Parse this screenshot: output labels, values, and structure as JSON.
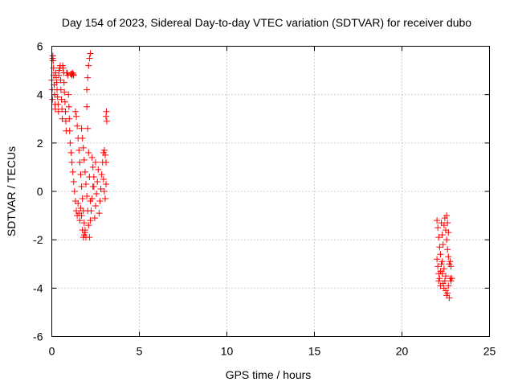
{
  "chart_data": {
    "type": "scatter",
    "title": "Day 154 of 2023, Sidereal Day-to-day VTEC variation (SDTVAR) for receiver dubo",
    "xlabel": "GPS time / hours",
    "ylabel": "SDTVAR / TECUs",
    "xlim": [
      0,
      25
    ],
    "ylim": [
      -6,
      6
    ],
    "xticks": [
      "0",
      "5",
      "10",
      "15",
      "20",
      "25"
    ],
    "xtick_values": [
      0,
      5,
      10,
      15,
      20,
      25
    ],
    "yticks": [
      "-6",
      "-4",
      "-2",
      "0",
      "2",
      "4",
      "6"
    ],
    "ytick_values": [
      -6,
      -4,
      -2,
      0,
      2,
      4,
      6
    ],
    "grid": true,
    "legend": "none",
    "marker": "+",
    "color": "#ff0000",
    "series": [
      {
        "name": "SDTVAR",
        "points": [
          [
            0.0,
            4.6
          ],
          [
            0.02,
            4.2
          ],
          [
            0.04,
            3.8
          ],
          [
            0.05,
            5.5
          ],
          [
            0.06,
            5.6
          ],
          [
            0.08,
            5.4
          ],
          [
            0.1,
            5.1
          ],
          [
            0.12,
            4.8
          ],
          [
            0.14,
            4.4
          ],
          [
            0.16,
            4.0
          ],
          [
            0.18,
            3.6
          ],
          [
            0.2,
            3.4
          ],
          [
            0.22,
            4.9
          ],
          [
            0.25,
            4.7
          ],
          [
            0.28,
            4.5
          ],
          [
            0.3,
            4.2
          ],
          [
            0.33,
            3.9
          ],
          [
            0.36,
            3.6
          ],
          [
            0.38,
            3.3
          ],
          [
            0.4,
            4.8
          ],
          [
            0.42,
            5.0
          ],
          [
            0.45,
            5.1
          ],
          [
            0.48,
            5.2
          ],
          [
            0.5,
            4.6
          ],
          [
            0.52,
            4.2
          ],
          [
            0.55,
            3.8
          ],
          [
            0.58,
            3.4
          ],
          [
            0.6,
            3.0
          ],
          [
            0.62,
            5.2
          ],
          [
            0.65,
            5.1
          ],
          [
            0.68,
            4.9
          ],
          [
            0.7,
            4.5
          ],
          [
            0.72,
            4.1
          ],
          [
            0.75,
            3.7
          ],
          [
            0.78,
            3.3
          ],
          [
            0.8,
            2.9
          ],
          [
            0.82,
            2.5
          ],
          [
            0.85,
            4.9
          ],
          [
            0.88,
            4.9
          ],
          [
            0.92,
            4.8
          ],
          [
            0.95,
            4.0
          ],
          [
            0.98,
            3.5
          ],
          [
            1.0,
            3.0
          ],
          [
            1.02,
            2.5
          ],
          [
            1.05,
            2.0
          ],
          [
            1.08,
            4.85
          ],
          [
            1.12,
            4.85
          ],
          [
            1.15,
            4.8
          ],
          [
            1.18,
            4.9
          ],
          [
            1.22,
            4.85
          ],
          [
            1.25,
            4.8
          ],
          [
            1.1,
            1.6
          ],
          [
            1.15,
            1.2
          ],
          [
            1.2,
            0.8
          ],
          [
            1.25,
            0.4
          ],
          [
            1.3,
            0.0
          ],
          [
            1.35,
            -0.4
          ],
          [
            1.4,
            -0.8
          ],
          [
            1.35,
            3.3
          ],
          [
            1.4,
            3.1
          ],
          [
            1.45,
            2.7
          ],
          [
            1.5,
            2.2
          ],
          [
            1.55,
            1.7
          ],
          [
            1.6,
            1.2
          ],
          [
            1.65,
            0.7
          ],
          [
            1.7,
            0.2
          ],
          [
            1.75,
            -0.3
          ],
          [
            1.8,
            -0.8
          ],
          [
            1.85,
            -1.3
          ],
          [
            1.9,
            -1.7
          ],
          [
            1.95,
            -1.9
          ],
          [
            1.45,
            -1.0
          ],
          [
            1.5,
            -0.5
          ],
          [
            1.55,
            -0.9
          ],
          [
            1.6,
            -1.2
          ],
          [
            1.65,
            -0.7
          ],
          [
            1.7,
            -1.0
          ],
          [
            1.75,
            -1.6
          ],
          [
            1.8,
            -1.9
          ],
          [
            1.85,
            -1.8
          ],
          [
            1.9,
            -1.6
          ],
          [
            1.7,
            2.6
          ],
          [
            1.75,
            2.2
          ],
          [
            1.8,
            1.8
          ],
          [
            1.85,
            1.3
          ],
          [
            1.9,
            0.8
          ],
          [
            1.95,
            0.3
          ],
          [
            2.0,
            -0.2
          ],
          [
            2.05,
            -0.8
          ],
          [
            2.1,
            -1.4
          ],
          [
            2.15,
            -1.9
          ],
          [
            2.0,
            4.2
          ],
          [
            2.05,
            4.7
          ],
          [
            2.1,
            5.2
          ],
          [
            2.15,
            5.5
          ],
          [
            2.2,
            5.7
          ],
          [
            2.0,
            3.5
          ],
          [
            2.05,
            2.6
          ],
          [
            2.1,
            1.6
          ],
          [
            2.15,
            0.6
          ],
          [
            2.2,
            -0.4
          ],
          [
            2.2,
            -1.2
          ],
          [
            2.25,
            -0.8
          ],
          [
            2.3,
            -0.3
          ],
          [
            2.35,
            0.2
          ],
          [
            2.4,
            0.6
          ],
          [
            2.45,
            -1.1
          ],
          [
            2.5,
            -0.6
          ],
          [
            2.55,
            -0.1
          ],
          [
            2.6,
            0.4
          ],
          [
            2.65,
            0.9
          ],
          [
            2.7,
            -0.9
          ],
          [
            2.75,
            -0.4
          ],
          [
            2.8,
            0.1
          ],
          [
            2.85,
            0.7
          ],
          [
            2.9,
            1.2
          ],
          [
            2.95,
            1.6
          ],
          [
            3.0,
            1.7
          ],
          [
            3.05,
            1.5
          ],
          [
            3.1,
            1.2
          ],
          [
            2.95,
            0.5
          ],
          [
            3.0,
            0.0
          ],
          [
            3.05,
            -0.3
          ],
          [
            3.1,
            0.3
          ],
          [
            3.1,
            3.1
          ],
          [
            3.12,
            3.3
          ],
          [
            3.14,
            2.9
          ],
          [
            2.3,
            1.4
          ],
          [
            2.35,
            1.0
          ],
          [
            2.4,
            0.2
          ],
          [
            2.5,
            1.2
          ],
          [
            22.0,
            -1.2
          ],
          [
            22.05,
            -1.5
          ],
          [
            22.1,
            -1.9
          ],
          [
            22.15,
            -2.3
          ],
          [
            22.2,
            -2.6
          ],
          [
            22.25,
            -1.3
          ],
          [
            22.3,
            -1.8
          ],
          [
            22.35,
            -2.2
          ],
          [
            22.4,
            -1.4
          ],
          [
            22.45,
            -1.1
          ],
          [
            22.5,
            -1.6
          ],
          [
            22.55,
            -2.0
          ],
          [
            22.6,
            -2.4
          ],
          [
            22.65,
            -2.7
          ],
          [
            22.7,
            -3.0
          ],
          [
            22.75,
            -2.9
          ],
          [
            22.8,
            -3.1
          ],
          [
            22.55,
            -1.0
          ],
          [
            22.6,
            -1.3
          ],
          [
            22.65,
            -1.7
          ],
          [
            22.0,
            -2.8
          ],
          [
            22.05,
            -3.1
          ],
          [
            22.1,
            -3.4
          ],
          [
            22.15,
            -3.6
          ],
          [
            22.2,
            -3.3
          ],
          [
            22.25,
            -3.0
          ],
          [
            22.3,
            -3.4
          ],
          [
            22.35,
            -3.8
          ],
          [
            22.4,
            -4.0
          ],
          [
            22.45,
            -3.7
          ],
          [
            22.5,
            -4.1
          ],
          [
            22.55,
            -4.3
          ],
          [
            22.6,
            -4.2
          ],
          [
            22.65,
            -3.9
          ],
          [
            22.7,
            -4.4
          ],
          [
            22.75,
            -3.6
          ],
          [
            22.8,
            -3.7
          ],
          [
            22.85,
            -3.6
          ],
          [
            22.5,
            -3.5
          ],
          [
            22.4,
            -3.2
          ],
          [
            22.1,
            -3.7
          ],
          [
            22.2,
            -3.9
          ],
          [
            22.3,
            -2.9
          ]
        ]
      }
    ]
  }
}
